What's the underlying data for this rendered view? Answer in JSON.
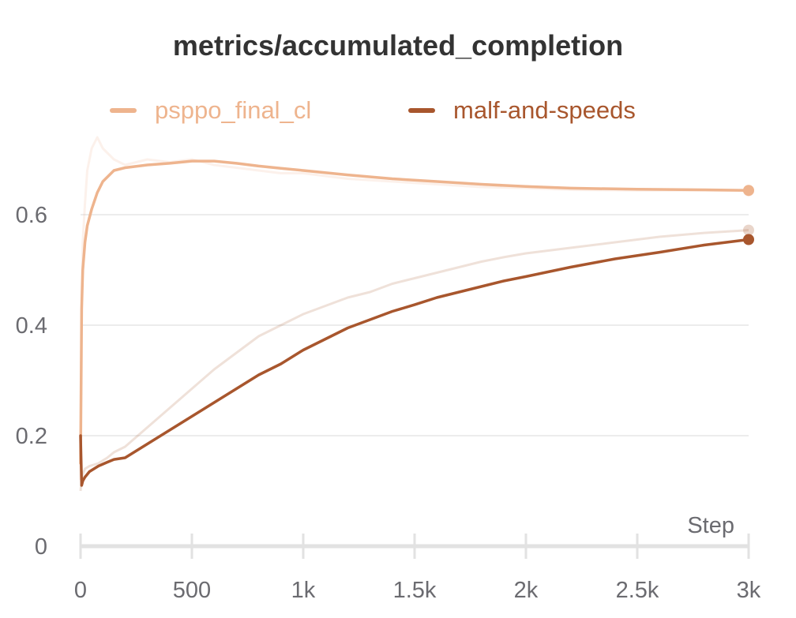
{
  "chart_data": {
    "type": "line",
    "title": "metrics/accumulated_completion",
    "xlabel": "Step",
    "ylabel": "",
    "xlim": [
      0,
      3000
    ],
    "ylim": [
      0,
      0.7
    ],
    "x_ticks": [
      {
        "value": 0,
        "label": "0"
      },
      {
        "value": 500,
        "label": "500"
      },
      {
        "value": 1000,
        "label": "1k"
      },
      {
        "value": 1500,
        "label": "1.5k"
      },
      {
        "value": 2000,
        "label": "2k"
      },
      {
        "value": 2500,
        "label": "2.5k"
      },
      {
        "value": 3000,
        "label": "3k"
      }
    ],
    "y_ticks": [
      {
        "value": 0,
        "label": "0"
      },
      {
        "value": 0.2,
        "label": "0.2"
      },
      {
        "value": 0.4,
        "label": "0.4"
      },
      {
        "value": 0.6,
        "label": "0.6"
      }
    ],
    "grid": true,
    "legend_position": "top",
    "series": [
      {
        "name": "psppo_final_cl",
        "color": "#eeb48e",
        "x": [
          0,
          5,
          10,
          20,
          30,
          50,
          75,
          100,
          150,
          200,
          300,
          400,
          500,
          600,
          700,
          800,
          900,
          1000,
          1200,
          1400,
          1600,
          1800,
          2000,
          2200,
          2500,
          2800,
          3000
        ],
        "y": [
          0.15,
          0.43,
          0.5,
          0.55,
          0.58,
          0.61,
          0.64,
          0.66,
          0.68,
          0.685,
          0.69,
          0.693,
          0.697,
          0.697,
          0.693,
          0.688,
          0.684,
          0.68,
          0.672,
          0.665,
          0.66,
          0.655,
          0.651,
          0.648,
          0.646,
          0.645,
          0.644
        ],
        "raw_y": [
          0.12,
          0.45,
          0.55,
          0.62,
          0.68,
          0.72,
          0.74,
          0.72,
          0.7,
          0.69,
          0.7,
          0.695,
          0.7,
          0.69,
          0.685,
          0.68,
          0.675,
          0.675,
          0.665,
          0.66,
          0.655,
          0.65,
          0.648,
          0.645,
          0.644,
          0.644,
          0.643
        ]
      },
      {
        "name": "malf-and-speeds",
        "color": "#a8562d",
        "x": [
          0,
          5,
          10,
          20,
          40,
          80,
          120,
          150,
          200,
          300,
          400,
          500,
          600,
          700,
          800,
          900,
          1000,
          1100,
          1200,
          1300,
          1400,
          1500,
          1600,
          1700,
          1800,
          1900,
          2000,
          2200,
          2400,
          2600,
          2800,
          3000
        ],
        "y": [
          0.2,
          0.11,
          0.118,
          0.125,
          0.135,
          0.145,
          0.152,
          0.157,
          0.16,
          0.185,
          0.21,
          0.235,
          0.26,
          0.285,
          0.31,
          0.33,
          0.355,
          0.375,
          0.395,
          0.41,
          0.425,
          0.437,
          0.45,
          0.46,
          0.47,
          0.48,
          0.488,
          0.505,
          0.52,
          0.532,
          0.545,
          0.555
        ],
        "raw_y": [
          0.1,
          0.12,
          0.13,
          0.14,
          0.145,
          0.15,
          0.16,
          0.17,
          0.18,
          0.215,
          0.25,
          0.285,
          0.32,
          0.35,
          0.38,
          0.4,
          0.42,
          0.435,
          0.45,
          0.46,
          0.475,
          0.485,
          0.495,
          0.505,
          0.515,
          0.523,
          0.53,
          0.54,
          0.55,
          0.56,
          0.567,
          0.572
        ]
      }
    ]
  }
}
